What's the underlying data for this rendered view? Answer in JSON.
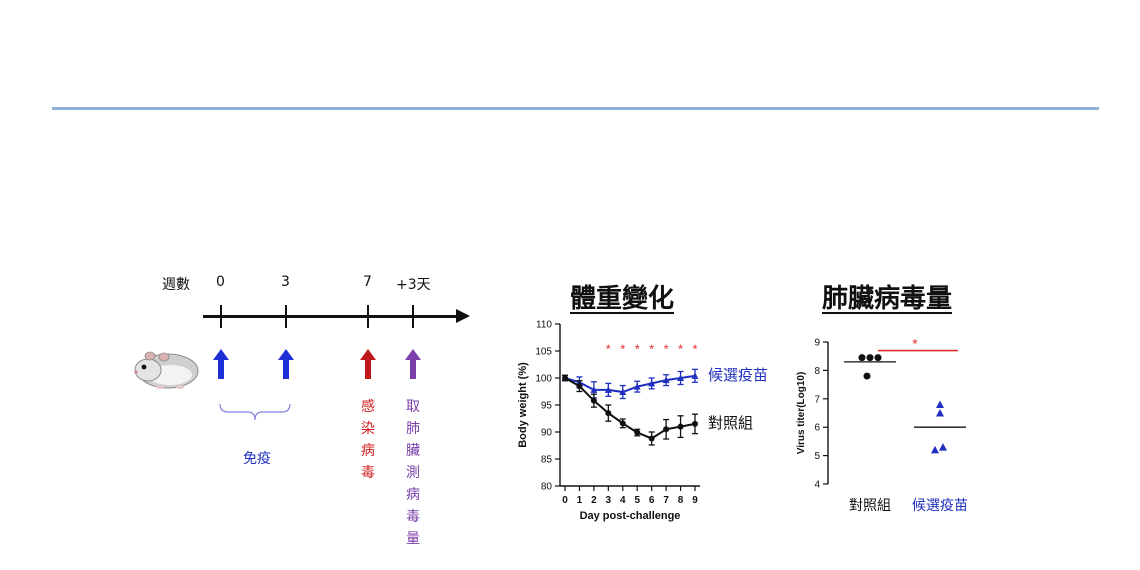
{
  "timeline": {
    "weeks_label": "週數",
    "ticks": [
      {
        "label": "0",
        "color": "#1f2fd6"
      },
      {
        "label": "3",
        "color": "#1f2fd6"
      },
      {
        "label": "7",
        "color": "#d21f1f"
      },
      {
        "label": "+3天",
        "color": "#7a3fa8"
      }
    ],
    "immunize_label": "免疫",
    "infect_label": "感染病毒",
    "sample_label": "取肺臟測病毒量"
  },
  "weight_chart": {
    "title": "體重變化",
    "vaccine_label": "候選疫苗",
    "control_label": "對照組"
  },
  "titer_chart": {
    "title": "肺臟病毒量",
    "control_label": "對照組",
    "vaccine_label": "候選疫苗"
  },
  "colors": {
    "vaccine": "#1f2fbf",
    "control": "#111111",
    "infect": "#d21f1f",
    "sample": "#7a3fa8",
    "significance": "#e03030",
    "rule": "#8fb0d6"
  },
  "chart_data": [
    {
      "type": "line",
      "title": "",
      "xlabel": "Day post-challenge",
      "ylabel": "Body weight (%)",
      "x": [
        0,
        1,
        2,
        3,
        4,
        5,
        6,
        7,
        8,
        9
      ],
      "ylim": [
        80,
        110
      ],
      "yticks": [
        80,
        85,
        90,
        95,
        100,
        105,
        110
      ],
      "series": [
        {
          "name": "候選疫苗",
          "values": [
            100,
            99.2,
            97.8,
            97.8,
            97.4,
            98.4,
            99.0,
            99.6,
            100.0,
            100.4
          ],
          "err": [
            0.5,
            1.0,
            1.5,
            1.2,
            1.2,
            1.0,
            1.0,
            1.0,
            1.2,
            1.2
          ]
        },
        {
          "name": "對照組",
          "values": [
            100,
            98.5,
            95.8,
            93.5,
            91.6,
            89.9,
            88.8,
            90.5,
            91.0,
            91.5
          ],
          "err": [
            0.5,
            1.0,
            1.2,
            1.5,
            0.8,
            0.6,
            1.2,
            1.8,
            2.0,
            1.8
          ]
        }
      ],
      "significance": {
        "symbol": "*",
        "days": [
          3,
          4,
          5,
          6,
          7,
          8,
          9
        ]
      }
    },
    {
      "type": "scatter",
      "title": "",
      "xlabel": "",
      "ylabel": "Virus titer(Log10)",
      "categories": [
        "對照組",
        "候選疫苗"
      ],
      "ylim": [
        4,
        9
      ],
      "yticks": [
        4,
        5,
        6,
        7,
        8,
        9
      ],
      "series": [
        {
          "name": "對照組",
          "values": [
            8.45,
            8.45,
            8.45,
            7.8
          ],
          "mean": 8.3
        },
        {
          "name": "候選疫苗",
          "values": [
            6.8,
            6.5,
            5.2,
            5.3
          ],
          "mean": 6.0
        }
      ],
      "significance": {
        "symbol": "*"
      }
    }
  ]
}
